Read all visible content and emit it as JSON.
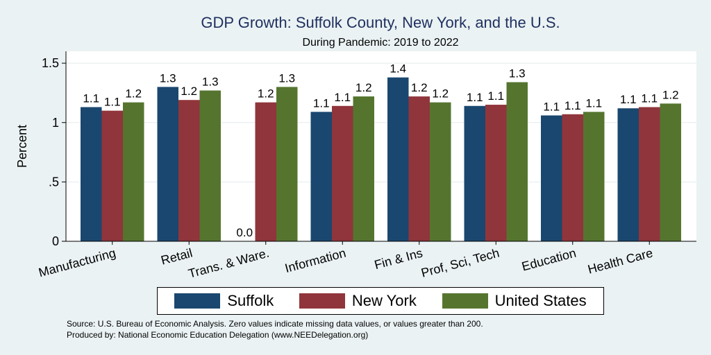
{
  "chart_data": {
    "type": "bar",
    "title": "GDP Growth: Suffolk County, New York, and the U.S.",
    "subtitle": "During Pandemic: 2019 to 2022",
    "xlabel": "",
    "ylabel": "Percent",
    "ylim": [
      0,
      1.6
    ],
    "yticks": [
      0,
      0.5,
      1,
      1.5
    ],
    "ytick_labels": [
      "0",
      ".5",
      "1",
      "1.5"
    ],
    "grid": true,
    "categories": [
      "Manufacturing",
      "Retail",
      "Trans. & Ware.",
      "Information",
      "Fin & Ins",
      "Prof, Sci, Tech",
      "Education",
      "Health Care"
    ],
    "series": [
      {
        "name": "Suffolk",
        "color": "#1a476f",
        "values": [
          1.13,
          1.3,
          0.0,
          1.09,
          1.38,
          1.14,
          1.06,
          1.12
        ],
        "labels": [
          "1.1",
          "1.3",
          "0.0",
          "1.1",
          "1.4",
          "1.1",
          "1.1",
          "1.1"
        ]
      },
      {
        "name": "New York",
        "color": "#90353b",
        "values": [
          1.1,
          1.19,
          1.17,
          1.14,
          1.22,
          1.15,
          1.07,
          1.13
        ],
        "labels": [
          "1.1",
          "1.2",
          "1.2",
          "1.1",
          "1.2",
          "1.1",
          "1.1",
          "1.1"
        ]
      },
      {
        "name": "United States",
        "color": "#55752f",
        "values": [
          1.17,
          1.27,
          1.3,
          1.22,
          1.17,
          1.34,
          1.09,
          1.16
        ],
        "labels": [
          "1.2",
          "1.3",
          "1.3",
          "1.2",
          "1.2",
          "1.3",
          "1.1",
          "1.2"
        ]
      }
    ],
    "legend_position": "bottom"
  },
  "notes": {
    "source": "Source: U.S. Bureau of Economic Analysis. Zero values indicate missing data values, or values greater than 200.",
    "produced_by": "Produced by: National Economic Education Delegation (www.NEEDelegation.org)"
  }
}
